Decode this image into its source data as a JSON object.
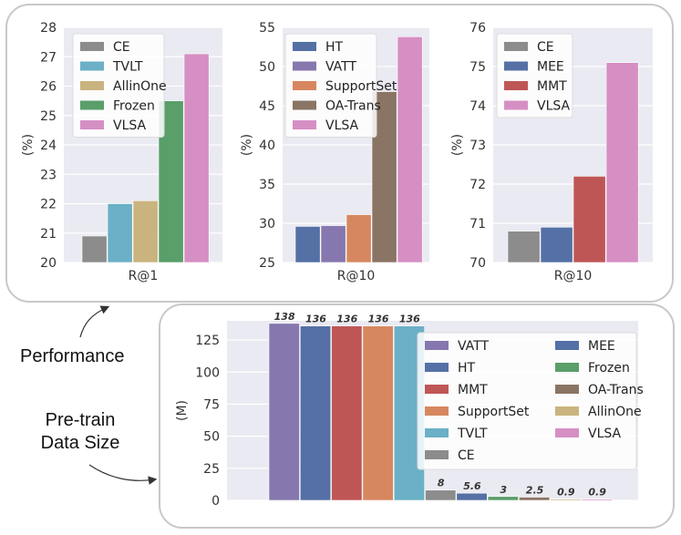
{
  "annotations": {
    "performance": "Performance",
    "pretrain_line1": "Pre-train",
    "pretrain_line2": "Data Size"
  },
  "chart_data": [
    {
      "type": "bar",
      "id": "r1",
      "xlabel": "R@1",
      "ylabel": "(%)",
      "ylim": [
        20,
        28
      ],
      "yticks": [
        20,
        21,
        22,
        23,
        24,
        25,
        26,
        27,
        28
      ],
      "legend": "top-left",
      "series": [
        {
          "name": "CE",
          "value": 20.9,
          "color": "#8c8c8c"
        },
        {
          "name": "TVLT",
          "value": 22.0,
          "color": "#6bb0c6"
        },
        {
          "name": "AllinOne",
          "value": 22.1,
          "color": "#c9b37e"
        },
        {
          "name": "Frozen",
          "value": 25.5,
          "color": "#5a9e6a"
        },
        {
          "name": "VLSA",
          "value": 27.1,
          "color": "#d68fc3"
        }
      ]
    },
    {
      "type": "bar",
      "id": "r10a",
      "xlabel": "R@10",
      "ylabel": "(%)",
      "ylim": [
        25,
        55
      ],
      "yticks": [
        25,
        30,
        35,
        40,
        45,
        50,
        55
      ],
      "legend": "top-left",
      "series": [
        {
          "name": "HT",
          "value": 29.6,
          "color": "#5470a5"
        },
        {
          "name": "VATT",
          "value": 29.7,
          "color": "#8678ae"
        },
        {
          "name": "SupportSet",
          "value": 31.1,
          "color": "#d6875f"
        },
        {
          "name": "OA-Trans",
          "value": 46.8,
          "color": "#8a7464"
        },
        {
          "name": "VLSA",
          "value": 53.8,
          "color": "#d68fc3"
        }
      ]
    },
    {
      "type": "bar",
      "id": "r10b",
      "xlabel": "R@10",
      "ylabel": "(%)",
      "ylim": [
        70,
        76
      ],
      "yticks": [
        70,
        71,
        72,
        73,
        74,
        75,
        76
      ],
      "legend": "top-left",
      "series": [
        {
          "name": "CE",
          "value": 70.8,
          "color": "#8c8c8c"
        },
        {
          "name": "MEE",
          "value": 70.9,
          "color": "#5470a5"
        },
        {
          "name": "MMT",
          "value": 72.2,
          "color": "#bf5656"
        },
        {
          "name": "VLSA",
          "value": 75.1,
          "color": "#d68fc3"
        }
      ]
    },
    {
      "type": "bar",
      "id": "datasize",
      "xlabel": "",
      "ylabel": "(M)",
      "ylim": [
        0,
        140
      ],
      "yticks": [
        0,
        25,
        50,
        75,
        100,
        125
      ],
      "legend": "top-right",
      "series": [
        {
          "name": "VATT",
          "value": 138,
          "label": "138",
          "color": "#8678ae"
        },
        {
          "name": "HT",
          "value": 136,
          "label": "136",
          "color": "#5470a5"
        },
        {
          "name": "MMT",
          "value": 136,
          "label": "136",
          "color": "#bf5656"
        },
        {
          "name": "SupportSet",
          "value": 136,
          "label": "136",
          "color": "#d6875f"
        },
        {
          "name": "TVLT",
          "value": 136,
          "label": "136",
          "color": "#6bb0c6"
        },
        {
          "name": "CE",
          "value": 8,
          "label": "8",
          "color": "#8c8c8c"
        },
        {
          "name": "MEE",
          "value": 5.6,
          "label": "5.6",
          "color": "#5470a5"
        },
        {
          "name": "Frozen",
          "value": 3,
          "label": "3",
          "color": "#5a9e6a"
        },
        {
          "name": "OA-Trans",
          "value": 2.5,
          "label": "2.5",
          "color": "#8a7464"
        },
        {
          "name": "AllinOne",
          "value": 0.9,
          "label": "0.9",
          "color": "#c9b37e"
        },
        {
          "name": "VLSA",
          "value": 0.9,
          "label": "0.9",
          "color": "#d68fc3"
        }
      ]
    }
  ]
}
